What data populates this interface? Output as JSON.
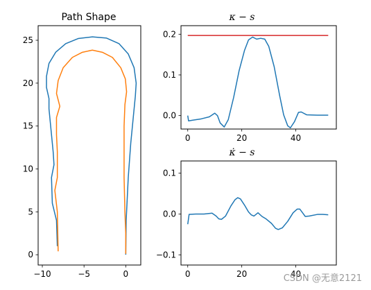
{
  "watermark": "CSDN @无意2121",
  "chart_data": [
    {
      "type": "line",
      "title": "Path Shape",
      "xlim": [
        -10.5,
        1.8
      ],
      "ylim": [
        -1.2,
        26.7
      ],
      "xticks": [
        {
          "v": -10,
          "label": "−10"
        },
        {
          "v": -5,
          "label": "−5"
        },
        {
          "v": 0,
          "label": "0"
        }
      ],
      "yticks": [
        {
          "v": 0,
          "label": "0"
        },
        {
          "v": 5,
          "label": "5"
        },
        {
          "v": 10,
          "label": "10"
        },
        {
          "v": 15,
          "label": "15"
        },
        {
          "v": 20,
          "label": "20"
        },
        {
          "v": 25,
          "label": "25"
        }
      ],
      "series": [
        {
          "color": "#1f77b4",
          "points": [
            [
              0,
              0
            ],
            [
              0.05,
              4
            ],
            [
              0.3,
              9
            ],
            [
              0.6,
              13
            ],
            [
              0.9,
              16
            ],
            [
              1.15,
              18.5
            ],
            [
              1.25,
              20
            ],
            [
              1.0,
              21.8
            ],
            [
              0.3,
              23.4
            ],
            [
              -0.8,
              24.6
            ],
            [
              -2.3,
              25.25
            ],
            [
              -4,
              25.4
            ],
            [
              -5.7,
              25.2
            ],
            [
              -7.2,
              24.6
            ],
            [
              -8.4,
              23.6
            ],
            [
              -9.2,
              22.3
            ],
            [
              -9.5,
              20.8
            ],
            [
              -9.5,
              19.5
            ],
            [
              -9.2,
              18.2
            ],
            [
              -9.2,
              17
            ],
            [
              -8.9,
              14
            ],
            [
              -8.7,
              12
            ],
            [
              -8.6,
              10.5
            ],
            [
              -8.9,
              9
            ],
            [
              -8.8,
              6
            ],
            [
              -8.3,
              4
            ],
            [
              -8.2,
              1
            ]
          ]
        },
        {
          "color": "#ff7f0e",
          "points": [
            [
              -8.1,
              0.4
            ],
            [
              -8.15,
              2.5
            ],
            [
              -8.2,
              5
            ],
            [
              -8.5,
              7.5
            ],
            [
              -8.2,
              9
            ],
            [
              -8.2,
              12
            ],
            [
              -8.3,
              14
            ],
            [
              -8.3,
              16
            ],
            [
              -7.9,
              17.3
            ],
            [
              -8.3,
              18.8
            ],
            [
              -8.1,
              20.3
            ],
            [
              -7.5,
              21.8
            ],
            [
              -6.4,
              23
            ],
            [
              -5.2,
              23.6
            ],
            [
              -4,
              23.85
            ],
            [
              -2.8,
              23.6
            ],
            [
              -1.6,
              23
            ],
            [
              -0.6,
              21.8
            ],
            [
              -0.05,
              20.5
            ],
            [
              0.1,
              19
            ],
            [
              -0.1,
              17.5
            ],
            [
              -0.2,
              15
            ],
            [
              -0.2,
              12
            ],
            [
              -0.2,
              9
            ],
            [
              -0.1,
              5
            ],
            [
              0,
              2.5
            ],
            [
              0,
              0.1
            ]
          ]
        }
      ]
    },
    {
      "type": "line",
      "title": "κ − s",
      "xlim": [
        -2.5,
        55
      ],
      "ylim": [
        -0.033,
        0.221
      ],
      "xticks": [
        {
          "v": 0,
          "label": "0"
        },
        {
          "v": 20,
          "label": "20"
        },
        {
          "v": 40,
          "label": "40"
        }
      ],
      "yticks": [
        {
          "v": 0,
          "label": "0.0"
        },
        {
          "v": 0.1,
          "label": "0.1"
        },
        {
          "v": 0.2,
          "label": "0.2"
        }
      ],
      "series": [
        {
          "color": "#1f77b4",
          "points": [
            [
              0,
              0
            ],
            [
              0.3,
              -0.013
            ],
            [
              2,
              -0.011
            ],
            [
              5,
              -0.008
            ],
            [
              8,
              -0.003
            ],
            [
              10,
              0.006
            ],
            [
              11,
              0
            ],
            [
              12,
              -0.018
            ],
            [
              13.5,
              -0.028
            ],
            [
              15,
              -0.01
            ],
            [
              17,
              0.045
            ],
            [
              19,
              0.11
            ],
            [
              21,
              0.16
            ],
            [
              22.5,
              0.186
            ],
            [
              24,
              0.193
            ],
            [
              25.5,
              0.188
            ],
            [
              27,
              0.19
            ],
            [
              28.5,
              0.188
            ],
            [
              30,
              0.17
            ],
            [
              32,
              0.12
            ],
            [
              34,
              0.05
            ],
            [
              35.5,
              0.002
            ],
            [
              37,
              -0.025
            ],
            [
              38,
              -0.03
            ],
            [
              39.5,
              -0.015
            ],
            [
              41,
              0.008
            ],
            [
              42,
              0.009
            ],
            [
              44,
              0.002
            ],
            [
              48,
              0.001
            ],
            [
              52,
              0.001
            ]
          ]
        },
        {
          "color": "#d62728",
          "points": [
            [
              0,
              0.197
            ],
            [
              52,
              0.197
            ]
          ]
        }
      ]
    },
    {
      "type": "line",
      "title": "κ̇ − s",
      "xlim": [
        -2.5,
        55
      ],
      "ylim": [
        -0.125,
        0.13
      ],
      "xticks": [
        {
          "v": 0,
          "label": "0"
        },
        {
          "v": 20,
          "label": "20"
        },
        {
          "v": 40,
          "label": "40"
        }
      ],
      "yticks": [
        {
          "v": -0.1,
          "label": "−0.1"
        },
        {
          "v": 0,
          "label": "0.0"
        },
        {
          "v": 0.1,
          "label": "0.1"
        }
      ],
      "series": [
        {
          "color": "#1f77b4",
          "points": [
            [
              0,
              -0.025
            ],
            [
              0.5,
              -0.001
            ],
            [
              3,
              0
            ],
            [
              6,
              0
            ],
            [
              9,
              0.002
            ],
            [
              10.5,
              -0.005
            ],
            [
              11.5,
              -0.012
            ],
            [
              12.5,
              -0.013
            ],
            [
              14,
              -0.005
            ],
            [
              16,
              0.02
            ],
            [
              17.5,
              0.035
            ],
            [
              18.5,
              0.04
            ],
            [
              19.5,
              0.037
            ],
            [
              21,
              0.022
            ],
            [
              22.5,
              0.005
            ],
            [
              23.5,
              -0.002
            ],
            [
              24.5,
              -0.005
            ],
            [
              26,
              0.003
            ],
            [
              27.5,
              -0.006
            ],
            [
              29,
              -0.012
            ],
            [
              31,
              -0.023
            ],
            [
              32.5,
              -0.035
            ],
            [
              33.5,
              -0.038
            ],
            [
              35,
              -0.034
            ],
            [
              37,
              -0.018
            ],
            [
              39,
              0.003
            ],
            [
              40.5,
              0.012
            ],
            [
              41.5,
              0.012
            ],
            [
              42.5,
              0.003
            ],
            [
              43.5,
              -0.006
            ],
            [
              45,
              -0.005
            ],
            [
              48,
              -0.001
            ],
            [
              50,
              -0.001
            ],
            [
              52,
              -0.002
            ]
          ]
        }
      ]
    }
  ]
}
